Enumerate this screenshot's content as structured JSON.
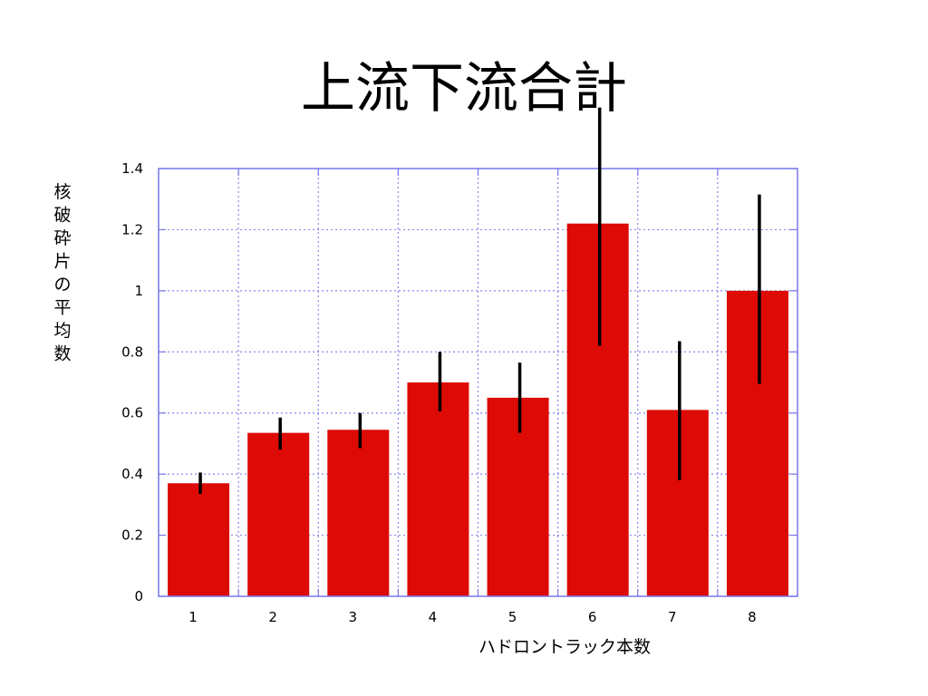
{
  "slide": {
    "title": "上流下流合計"
  },
  "chart_data": {
    "type": "bar",
    "categories": [
      "1",
      "2",
      "3",
      "4",
      "5",
      "6",
      "7",
      "8"
    ],
    "values": [
      0.37,
      0.535,
      0.545,
      0.7,
      0.65,
      1.22,
      0.61,
      1.0
    ],
    "error_low": [
      0.335,
      0.48,
      0.485,
      0.605,
      0.535,
      0.82,
      0.38,
      0.695
    ],
    "error_high": [
      0.405,
      0.585,
      0.6,
      0.8,
      0.765,
      1.6,
      0.835,
      1.315
    ],
    "xlabel": "ハドロントラック本数",
    "ylabel": "核破砕片の平均数",
    "ylim": [
      0,
      1.4
    ],
    "yticks": [
      0,
      0.2,
      0.4,
      0.6,
      0.8,
      1,
      1.2,
      1.4
    ],
    "ytick_labels": [
      "0",
      "0.2",
      "0.4",
      "0.6",
      "0.8",
      "1",
      "1.2",
      "1.4"
    ],
    "grid": true,
    "colors": {
      "bar": "#dd0a05",
      "error_bar": "#000000",
      "frame": "#7777ee",
      "grid": "#8888ee"
    }
  }
}
